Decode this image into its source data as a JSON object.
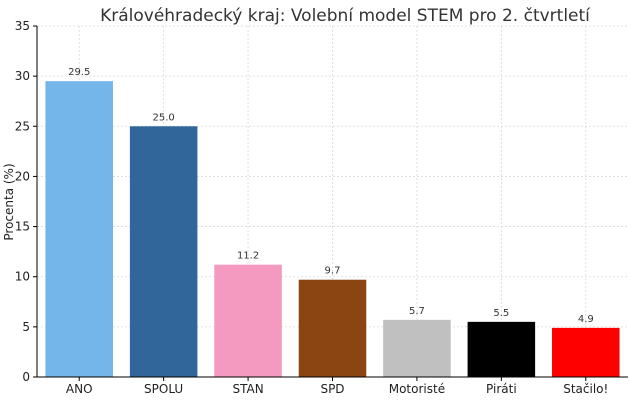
{
  "chart_data": {
    "type": "bar",
    "title": "Královéhradecký kraj: Volební model STEM pro 2. čtvrtletí",
    "xlabel": "",
    "ylabel": "Procenta (%)",
    "ylim": [
      0,
      35
    ],
    "yticks": [
      0,
      5,
      10,
      15,
      20,
      25,
      30,
      35
    ],
    "grid": true,
    "categories": [
      "ANO",
      "SPOLU",
      "STAN",
      "SPD",
      "Motoristé",
      "Piráti",
      "Stačilo!"
    ],
    "values": [
      29.5,
      25.0,
      11.2,
      9.7,
      5.7,
      5.5,
      4.9
    ],
    "value_labels": [
      "29.5",
      "25.0",
      "11.2",
      "9.7",
      "5.7",
      "5.5",
      "4.9"
    ],
    "colors": [
      "#74b6ea",
      "#31669b",
      "#f49ac1",
      "#8b4513",
      "#c0c0c0",
      "#000000",
      "#ff0000"
    ]
  }
}
